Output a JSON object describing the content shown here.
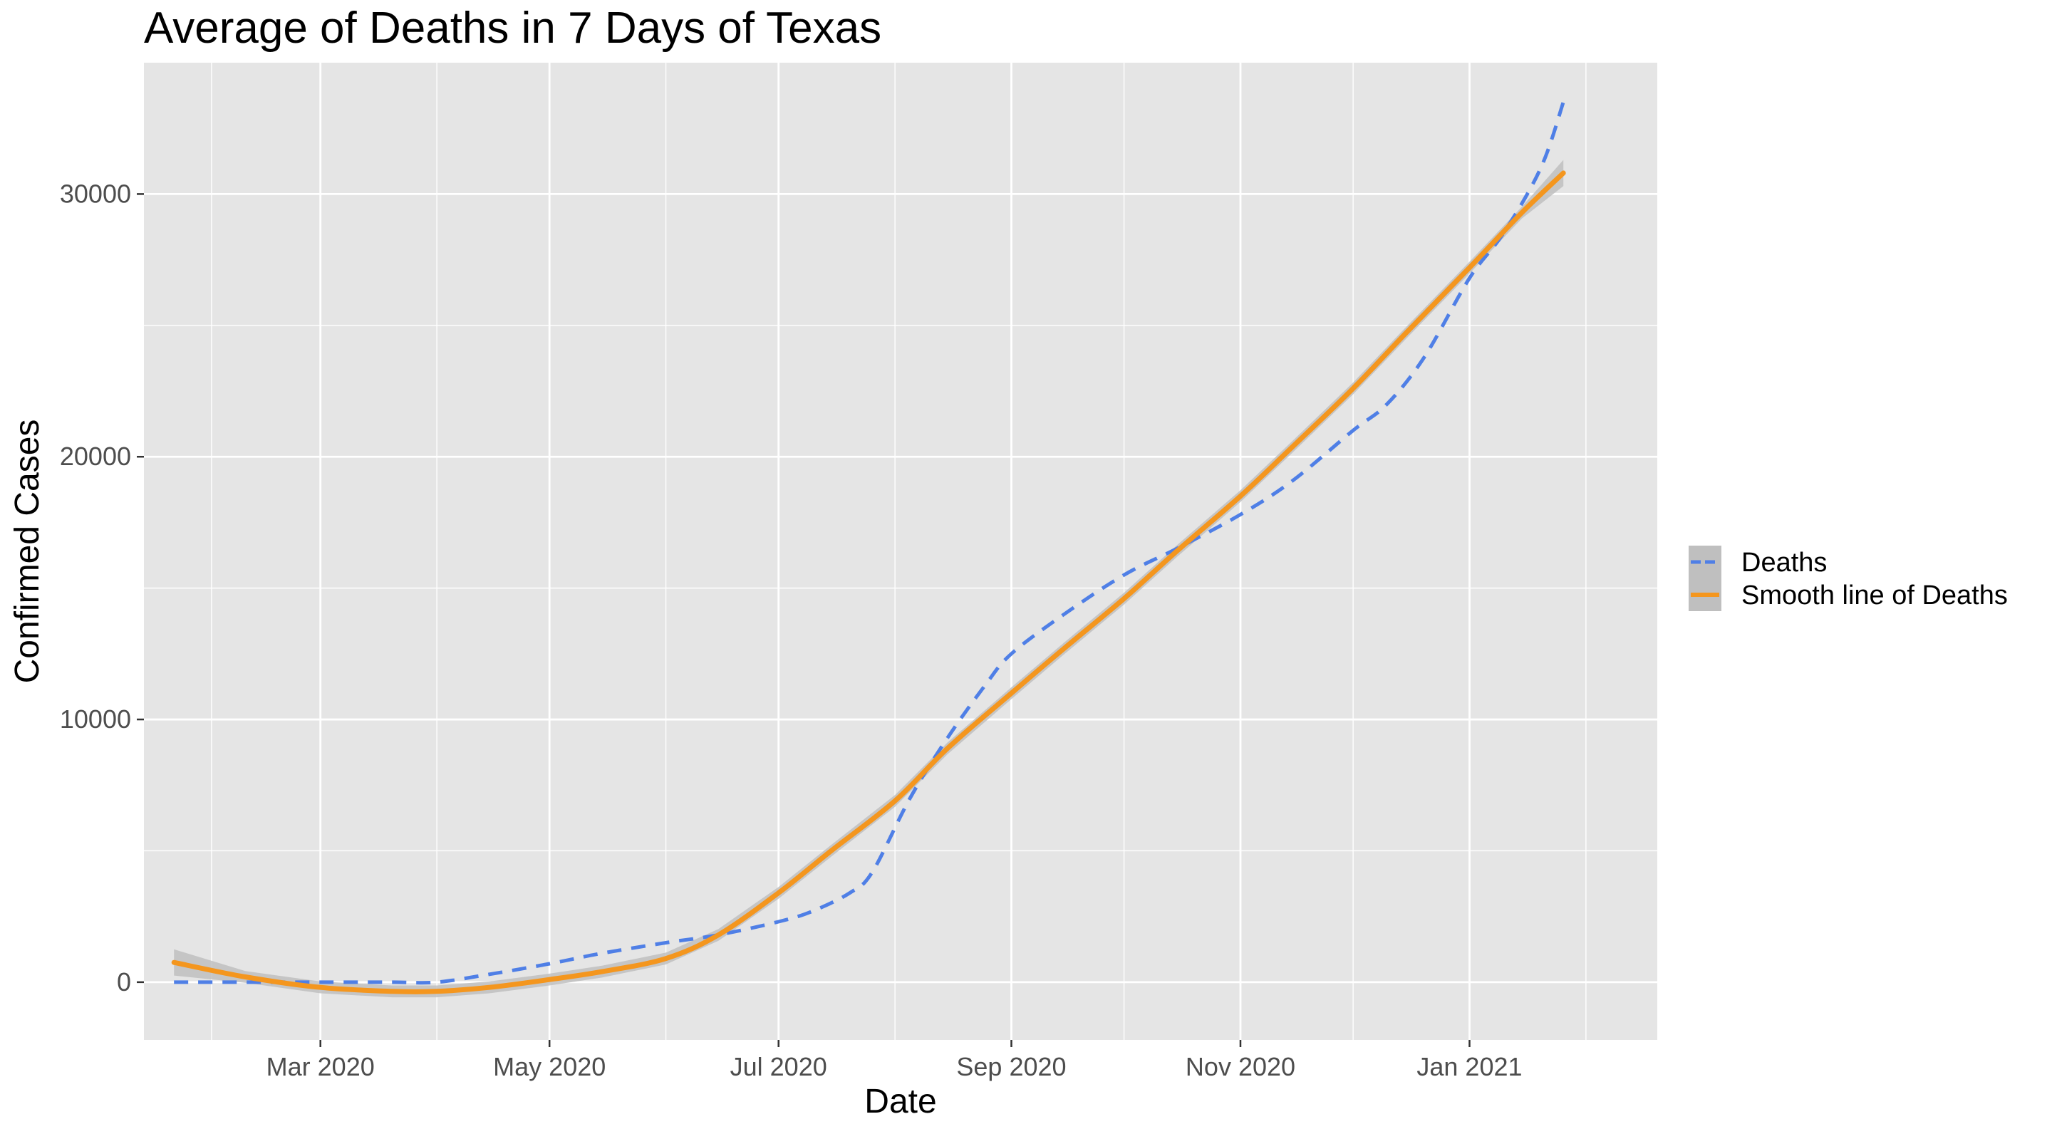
{
  "chart_data": {
    "type": "line",
    "title": "Average of Deaths in 7 Days of Texas",
    "xlabel": "Date",
    "ylabel": "Confirmed Cases",
    "x_type": "date",
    "xlim": [
      "2020-01-14",
      "2021-02-20"
    ],
    "ylim": [
      -2200,
      35000
    ],
    "x_ticks": [
      {
        "date": "2020-03-01",
        "label": "Mar 2020"
      },
      {
        "date": "2020-05-01",
        "label": "May 2020"
      },
      {
        "date": "2020-07-01",
        "label": "Jul 2020"
      },
      {
        "date": "2020-09-01",
        "label": "Sep 2020"
      },
      {
        "date": "2020-11-01",
        "label": "Nov 2020"
      },
      {
        "date": "2021-01-01",
        "label": "Jan 2021"
      }
    ],
    "x_minor_ticks": [
      "2020-02-01",
      "2020-04-01",
      "2020-06-01",
      "2020-08-01",
      "2020-10-01",
      "2020-12-01",
      "2021-02-01"
    ],
    "y_ticks": [
      0,
      10000,
      20000,
      30000
    ],
    "y_minor_ticks": [
      5000,
      15000,
      25000
    ],
    "grid": true,
    "panel_background": "#e5e5e5",
    "grid_color": "#ffffff",
    "legend_position": "right",
    "legend": [
      {
        "label": "Deaths",
        "color": "#4f7fe6",
        "linetype": "dashed"
      },
      {
        "label": "Smooth line of Deaths",
        "color": "#f4961e",
        "linetype": "solid",
        "band_color": "#bfbfbf"
      }
    ],
    "series": [
      {
        "name": "Deaths",
        "color": "#4f7fe6",
        "linetype": "dashed",
        "points": [
          [
            "2020-01-22",
            0
          ],
          [
            "2020-02-10",
            0
          ],
          [
            "2020-03-01",
            0
          ],
          [
            "2020-03-20",
            0
          ],
          [
            "2020-04-01",
            0
          ],
          [
            "2020-04-15",
            300
          ],
          [
            "2020-05-01",
            700
          ],
          [
            "2020-05-15",
            1100
          ],
          [
            "2020-06-01",
            1500
          ],
          [
            "2020-06-15",
            1800
          ],
          [
            "2020-07-01",
            2300
          ],
          [
            "2020-07-10",
            2700
          ],
          [
            "2020-07-20",
            3400
          ],
          [
            "2020-07-26",
            4200
          ],
          [
            "2020-08-05",
            7000
          ],
          [
            "2020-08-15",
            9300
          ],
          [
            "2020-08-25",
            11300
          ],
          [
            "2020-09-01",
            12500
          ],
          [
            "2020-09-15",
            14000
          ],
          [
            "2020-10-01",
            15500
          ],
          [
            "2020-10-15",
            16500
          ],
          [
            "2020-11-01",
            17800
          ],
          [
            "2020-11-15",
            19100
          ],
          [
            "2020-12-01",
            21000
          ],
          [
            "2020-12-10",
            22000
          ],
          [
            "2020-12-20",
            23800
          ],
          [
            "2021-01-01",
            26800
          ],
          [
            "2021-01-10",
            28500
          ],
          [
            "2021-01-20",
            31000
          ],
          [
            "2021-01-26",
            33500
          ]
        ]
      },
      {
        "name": "Smooth line of Deaths",
        "color": "#f4961e",
        "linetype": "solid",
        "band": 500,
        "points": [
          [
            "2020-01-22",
            750
          ],
          [
            "2020-02-10",
            200
          ],
          [
            "2020-03-01",
            -200
          ],
          [
            "2020-03-20",
            -350
          ],
          [
            "2020-04-01",
            -350
          ],
          [
            "2020-04-15",
            -200
          ],
          [
            "2020-05-01",
            100
          ],
          [
            "2020-05-15",
            400
          ],
          [
            "2020-06-01",
            900
          ],
          [
            "2020-06-15",
            1800
          ],
          [
            "2020-07-01",
            3400
          ],
          [
            "2020-07-15",
            5000
          ],
          [
            "2020-08-01",
            6900
          ],
          [
            "2020-08-15",
            8900
          ],
          [
            "2020-09-01",
            11000
          ],
          [
            "2020-09-15",
            12700
          ],
          [
            "2020-10-01",
            14600
          ],
          [
            "2020-10-15",
            16400
          ],
          [
            "2020-11-01",
            18500
          ],
          [
            "2020-11-15",
            20400
          ],
          [
            "2020-12-01",
            22600
          ],
          [
            "2020-12-15",
            24700
          ],
          [
            "2021-01-01",
            27200
          ],
          [
            "2021-01-15",
            29300
          ],
          [
            "2021-01-26",
            30800
          ]
        ]
      }
    ]
  }
}
